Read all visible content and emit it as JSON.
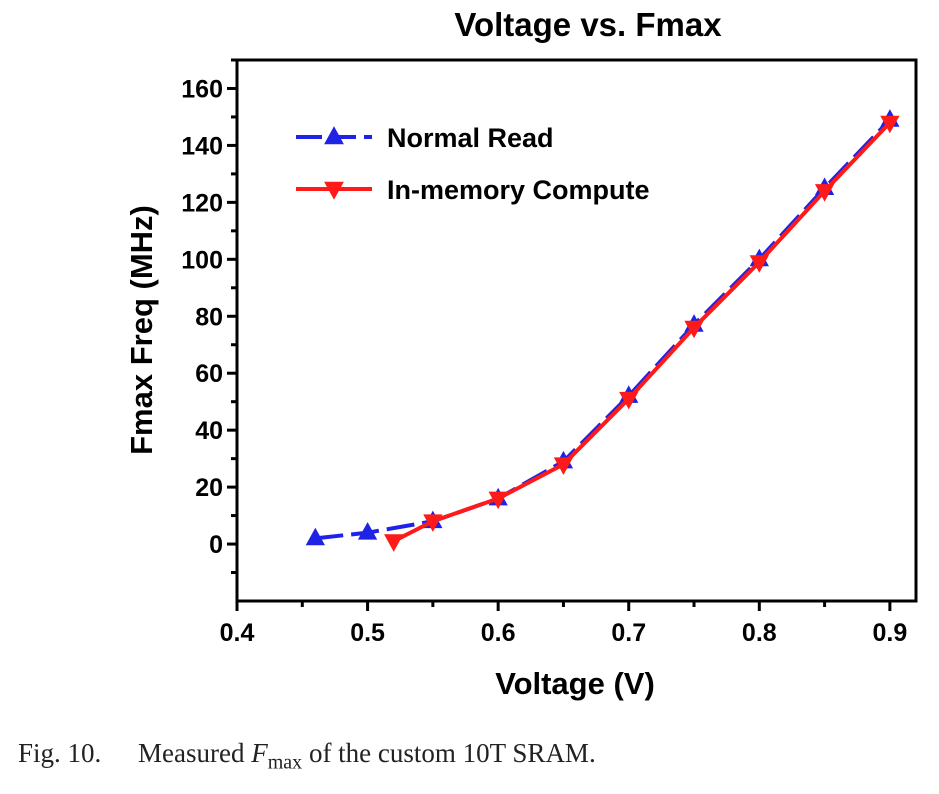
{
  "chart_data": {
    "type": "line",
    "title": "Voltage vs. Fmax",
    "xlabel": "Voltage (V)",
    "ylabel": "Fmax Freq (MHz)",
    "xlim": [
      0.4,
      0.92
    ],
    "ylim": [
      -20,
      170
    ],
    "xticks": [
      0.4,
      0.5,
      0.6,
      0.7,
      0.8,
      0.9
    ],
    "xtick_labels": [
      "0.4",
      "0.5",
      "0.6",
      "0.7",
      "0.8",
      "0.9"
    ],
    "yticks": [
      0,
      20,
      40,
      60,
      80,
      100,
      120,
      140,
      160
    ],
    "ytick_labels": [
      "0",
      "20",
      "40",
      "60",
      "80",
      "100",
      "120",
      "140",
      "160"
    ],
    "grid": false,
    "legend_position": "top-left",
    "series": [
      {
        "name": "Normal Read",
        "color": "#1f23e6",
        "marker": "triangle-up",
        "line_style": "dashed",
        "x": [
          0.46,
          0.5,
          0.55,
          0.6,
          0.65,
          0.7,
          0.75,
          0.8,
          0.85,
          0.9
        ],
        "y": [
          2,
          4,
          8,
          16,
          29,
          52,
          77,
          100,
          125,
          149
        ]
      },
      {
        "name": "In-memory Compute",
        "color": "#ff1a1a",
        "marker": "triangle-down",
        "line_style": "solid",
        "x": [
          0.52,
          0.55,
          0.6,
          0.65,
          0.7,
          0.75,
          0.8,
          0.85,
          0.9
        ],
        "y": [
          1,
          8,
          16,
          28,
          51,
          76,
          99,
          124,
          148
        ]
      }
    ]
  },
  "caption": {
    "fig_number": "Fig. 10.",
    "text_before": "Measured",
    "symbol": "F",
    "symbol_sub": "max",
    "text_after": "of the custom 10T SRAM."
  }
}
